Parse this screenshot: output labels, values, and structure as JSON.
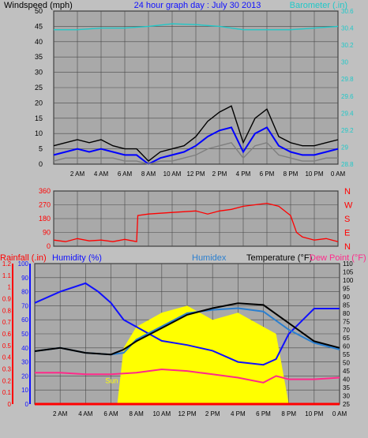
{
  "colors": {
    "background": "#c0c0c0",
    "plot_bg": "#a9a9a9",
    "grid": "#4a4a4a",
    "wind_avg": "#0000ff",
    "wind_gust": "#000000",
    "wind_low": "#7f7f7f",
    "barometer": "#20c8c8",
    "direction": "#ff0000",
    "rain": "#ff0000",
    "humidity": "#1010ff",
    "humidex": "#2a7fd0",
    "temperature": "#000000",
    "dewpoint": "#ff2a8a",
    "sun": "#ffff00",
    "sun_text": "#ffff00"
  },
  "chart_data": [
    {
      "type": "line",
      "title": "24 hour graph day : July 30 2013",
      "left_axis_label": "Windspeed (mph)",
      "right_axis_label": "Barometer (.in)",
      "left_ticks": [
        "0",
        "5",
        "10",
        "15",
        "20",
        "25",
        "30",
        "35",
        "40",
        "45",
        "50"
      ],
      "right_ticks": [
        "28.8",
        "29",
        "29.2",
        "29.4",
        "29.6",
        "29.8",
        "30",
        "30.2",
        "30.4",
        "30.6"
      ],
      "x_tick_labels": [
        "2 AM",
        "4 AM",
        "6 AM",
        "8 AM",
        "10 AM",
        "12 PM",
        "2 PM",
        "4 PM",
        "6 PM",
        "8 PM",
        "10 PM",
        "0 AM"
      ],
      "x_hours": [
        0,
        24
      ],
      "ylim_left": [
        0,
        50
      ],
      "ylim_right": [
        28.8,
        30.6
      ],
      "grid": true,
      "series": [
        {
          "key": "wind_gust",
          "x": [
            0,
            1,
            2,
            3,
            4,
            5,
            6,
            7,
            8,
            9,
            10,
            11,
            12,
            13,
            14,
            15,
            16,
            17,
            18,
            19,
            20,
            21,
            22,
            23,
            24
          ],
          "values": [
            6,
            7,
            8,
            7,
            8,
            6,
            5,
            5,
            1,
            4,
            5,
            6,
            9,
            14,
            17,
            19,
            7,
            15,
            18,
            9,
            7,
            6,
            6,
            7,
            8
          ]
        },
        {
          "key": "wind_avg",
          "x": [
            0,
            1,
            2,
            3,
            4,
            5,
            6,
            7,
            8,
            9,
            10,
            11,
            12,
            13,
            14,
            15,
            16,
            17,
            18,
            19,
            20,
            21,
            22,
            23,
            24
          ],
          "values": [
            3,
            4,
            5,
            4,
            5,
            4,
            3,
            3,
            0,
            2,
            3,
            4,
            6,
            9,
            11,
            12,
            4,
            10,
            12,
            6,
            4,
            3,
            3,
            4,
            5
          ]
        },
        {
          "key": "wind_low",
          "x": [
            0,
            1,
            2,
            3,
            4,
            5,
            6,
            7,
            8,
            9,
            10,
            11,
            12,
            13,
            14,
            15,
            16,
            17,
            18,
            19,
            20,
            21,
            22,
            23,
            24
          ],
          "values": [
            1,
            2,
            2,
            2,
            2,
            2,
            1,
            1,
            0,
            1,
            1,
            2,
            3,
            5,
            6,
            7,
            2,
            6,
            7,
            3,
            2,
            1,
            1,
            2,
            2
          ]
        },
        {
          "key": "barometer",
          "axis": "right",
          "x": [
            0,
            2,
            4,
            6,
            8,
            10,
            12,
            14,
            16,
            18,
            20,
            22,
            24
          ],
          "values": [
            30.38,
            30.38,
            30.4,
            30.4,
            30.42,
            30.45,
            30.44,
            30.42,
            30.38,
            30.38,
            30.38,
            30.4,
            30.42
          ]
        }
      ]
    },
    {
      "type": "line",
      "left_ticks": [
        "0",
        "90",
        "180",
        "270",
        "360"
      ],
      "right_ticks": [
        "N",
        "E",
        "S",
        "W",
        "N"
      ],
      "ylim": [
        0,
        360
      ],
      "grid": true,
      "series": [
        {
          "key": "direction",
          "x": [
            0,
            1,
            2,
            3,
            4,
            5,
            6,
            7,
            7.1,
            8,
            10,
            12,
            13,
            14,
            15,
            16,
            17,
            18,
            19,
            20,
            20.5,
            21,
            22,
            23,
            24
          ],
          "values": [
            40,
            30,
            50,
            35,
            40,
            30,
            45,
            30,
            200,
            210,
            220,
            230,
            210,
            230,
            240,
            260,
            270,
            280,
            260,
            200,
            90,
            60,
            40,
            50,
            30
          ]
        }
      ]
    },
    {
      "type": "line",
      "labels": {
        "rain": "Rainfall (.in)",
        "humidity": "Humidity (%)",
        "humidex": "Humidex",
        "temperature": "Temperature (°F)",
        "dewpoint": "Dew Point (°F)",
        "sun": "Sun"
      },
      "left_ticks_rain": [
        "0",
        "0.1",
        "0.2",
        "0.3",
        "0.4",
        "0.5",
        "0.6",
        "0.7",
        "0.8",
        "0.9",
        "1",
        "1.1",
        "1.2"
      ],
      "left_ticks_humidity": [
        "0",
        "10",
        "20",
        "30",
        "40",
        "50",
        "60",
        "70",
        "80",
        "90",
        "100"
      ],
      "right_ticks_temp": [
        "25",
        "30",
        "35",
        "40",
        "45",
        "50",
        "55",
        "60",
        "65",
        "70",
        "75",
        "80",
        "85",
        "90",
        "95",
        "100",
        "105",
        "110"
      ],
      "ylim_humidity": [
        0,
        100
      ],
      "ylim_temp": [
        25,
        110
      ],
      "grid": true,
      "series": [
        {
          "key": "sun",
          "x": [
            0,
            6.5,
            7,
            8,
            10,
            12,
            14,
            16,
            18,
            19,
            20,
            24
          ],
          "values": [
            0,
            0,
            40,
            55,
            65,
            70,
            60,
            65,
            55,
            50,
            0,
            0
          ]
        },
        {
          "key": "humidity",
          "x": [
            0,
            2,
            4,
            5,
            6,
            7,
            8,
            10,
            12,
            14,
            16,
            18,
            19,
            20,
            22,
            24
          ],
          "values": [
            72,
            80,
            86,
            80,
            72,
            60,
            55,
            45,
            42,
            38,
            30,
            28,
            32,
            50,
            68,
            68
          ]
        },
        {
          "key": "humidex",
          "x": [
            0,
            2,
            4,
            6,
            7,
            8,
            10,
            12,
            14,
            16,
            18,
            20,
            22,
            24
          ],
          "values": [
            57,
            59,
            56,
            55,
            56,
            64,
            72,
            80,
            82,
            83,
            81,
            70,
            62,
            58
          ]
        },
        {
          "key": "temperature",
          "x": [
            0,
            2,
            4,
            6,
            7,
            8,
            10,
            12,
            14,
            16,
            18,
            20,
            22,
            24
          ],
          "values": [
            57,
            59,
            56,
            55,
            58,
            63,
            71,
            79,
            83,
            86,
            85,
            74,
            63,
            59
          ]
        },
        {
          "key": "dewpoint",
          "x": [
            0,
            2,
            4,
            6,
            8,
            10,
            12,
            14,
            16,
            18,
            19,
            20,
            22,
            24
          ],
          "values": [
            44,
            44,
            43,
            43,
            44,
            46,
            45,
            43,
            41,
            38,
            42,
            40,
            40,
            41
          ]
        },
        {
          "key": "rain",
          "x": [
            0,
            24
          ],
          "values": [
            0,
            0
          ]
        }
      ]
    }
  ]
}
